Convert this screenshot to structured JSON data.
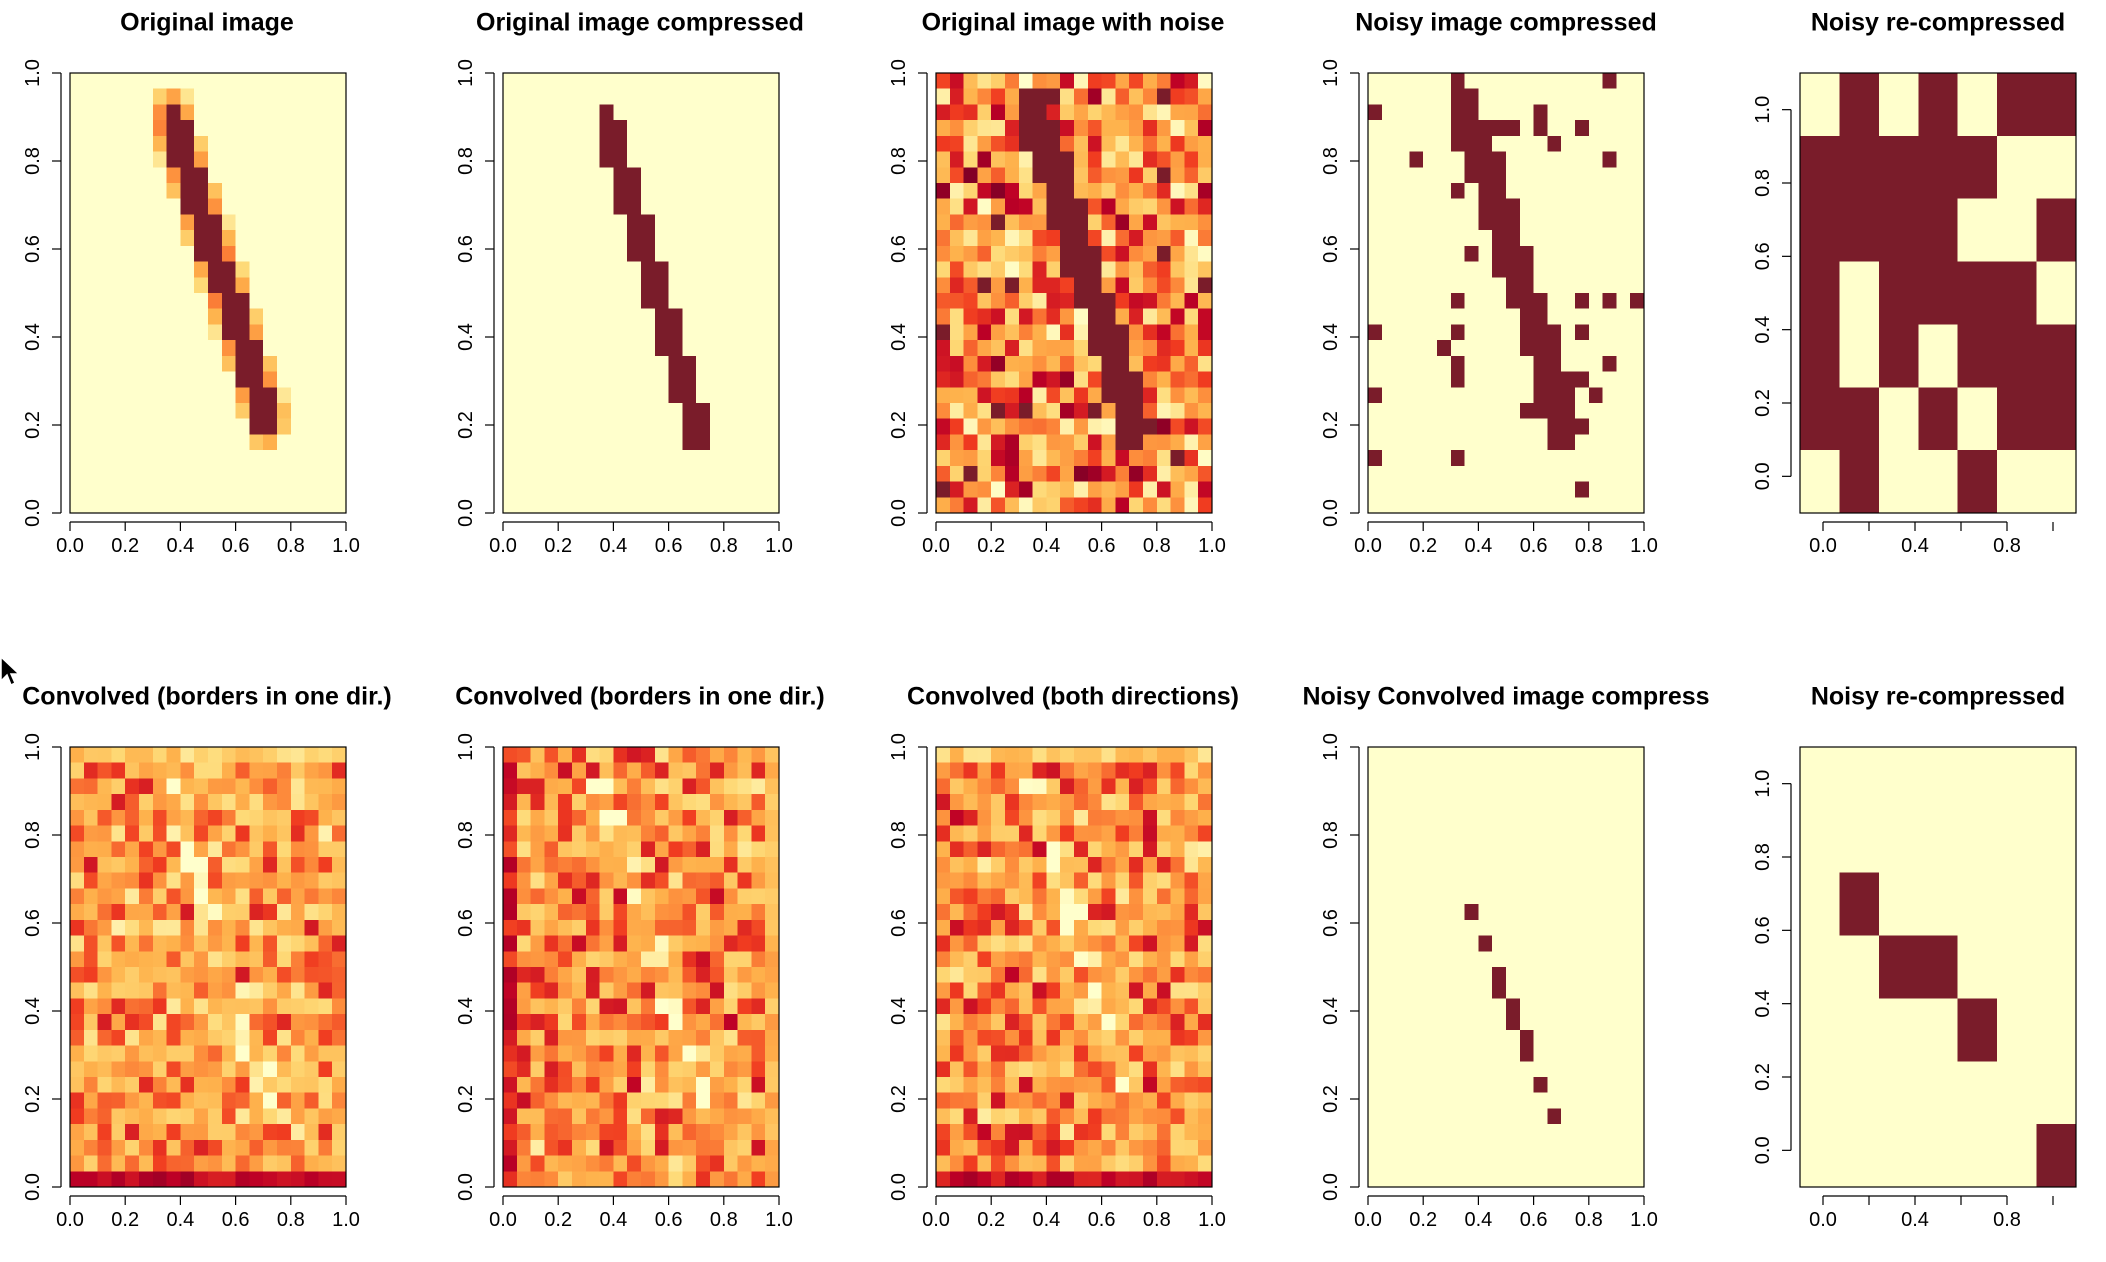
{
  "colors": {
    "ramp": [
      "#FFFFCC",
      "#FED976",
      "#FEB24C",
      "#FD8D3C",
      "#F03B20",
      "#BD0026",
      "#800026"
    ],
    "low": "#FFFFCC",
    "high": "#7A1C2A",
    "axis": "#000000",
    "background": "#FFFFFF"
  },
  "cursor_icon": "arrow-pointer-icon",
  "chart_data": [
    {
      "type": "heatmap",
      "title": "Original image",
      "xlim": [
        0,
        1
      ],
      "ylim": [
        0,
        1
      ],
      "xticks": [
        "0.0",
        "0.2",
        "0.4",
        "0.6",
        "0.8",
        "1.0"
      ],
      "yticks": [
        "0.0",
        "0.2",
        "0.4",
        "0.6",
        "0.8",
        "1.0"
      ],
      "grid": [
        20,
        28
      ],
      "pattern": "stroke",
      "stroke": {
        "from": [
          0.37,
          0.89
        ],
        "to": [
          0.71,
          0.22
        ],
        "width": 0.09,
        "soft_edge": true
      },
      "noise": 0,
      "binary": false
    },
    {
      "type": "heatmap",
      "title": "Original image compressed",
      "xlim": [
        0,
        1
      ],
      "ylim": [
        0,
        1
      ],
      "xticks": [
        "0.0",
        "0.2",
        "0.4",
        "0.6",
        "0.8",
        "1.0"
      ],
      "yticks": [
        "0.0",
        "0.2",
        "0.4",
        "0.6",
        "0.8",
        "1.0"
      ],
      "grid": [
        20,
        28
      ],
      "pattern": "stroke",
      "stroke": {
        "from": [
          0.38,
          0.88
        ],
        "to": [
          0.7,
          0.2
        ],
        "width": 0.1,
        "soft_edge": false
      },
      "noise": 0,
      "binary": true
    },
    {
      "type": "heatmap",
      "title": "Original image with noise",
      "xlim": [
        0,
        1
      ],
      "ylim": [
        0,
        1
      ],
      "xticks": [
        "0.0",
        "0.2",
        "0.4",
        "0.6",
        "0.8",
        "1.0"
      ],
      "yticks": [
        "0.0",
        "0.2",
        "0.4",
        "0.6",
        "0.8",
        "1.0"
      ],
      "grid": [
        20,
        28
      ],
      "pattern": "stroke",
      "stroke": {
        "from": [
          0.36,
          0.9
        ],
        "to": [
          0.72,
          0.2
        ],
        "width": 0.12,
        "soft_edge": false
      },
      "noise": 0.85,
      "binary": false
    },
    {
      "type": "heatmap",
      "title": "Noisy image compressed",
      "xlim": [
        0,
        1
      ],
      "ylim": [
        0,
        1
      ],
      "xticks": [
        "0.0",
        "0.2",
        "0.4",
        "0.6",
        "0.8",
        "1.0"
      ],
      "yticks": [
        "0.0",
        "0.2",
        "0.4",
        "0.6",
        "0.8",
        "1.0"
      ],
      "grid": [
        20,
        28
      ],
      "pattern": "stroke",
      "stroke": {
        "from": [
          0.36,
          0.9
        ],
        "to": [
          0.72,
          0.2
        ],
        "width": 0.12,
        "soft_edge": false
      },
      "noise": 0.75,
      "binary": true,
      "threshold": 0.8
    },
    {
      "type": "heatmap",
      "title": "Noisy re-compressed",
      "xlim": [
        -0.1,
        1.1
      ],
      "ylim": [
        -0.1,
        1.1
      ],
      "xticks": [
        "0.0",
        "0.4",
        "0.8"
      ],
      "yticks": [
        "0.0",
        "0.2",
        "0.4",
        "0.6",
        "0.8",
        "1.0"
      ],
      "grid": [
        7,
        7
      ],
      "pattern": "matrix",
      "binary": true,
      "cells": [
        [
          0,
          1,
          0,
          1,
          0,
          1,
          1
        ],
        [
          1,
          1,
          1,
          1,
          1,
          0,
          0
        ],
        [
          1,
          1,
          1,
          1,
          0,
          0,
          1
        ],
        [
          1,
          0,
          1,
          1,
          1,
          1,
          0
        ],
        [
          1,
          0,
          1,
          0,
          1,
          1,
          1
        ],
        [
          1,
          1,
          0,
          1,
          0,
          1,
          1
        ],
        [
          0,
          1,
          0,
          0,
          1,
          0,
          0
        ]
      ]
    },
    {
      "type": "heatmap",
      "title": "Convolved (borders in one dir.)",
      "xlim": [
        0,
        1
      ],
      "ylim": [
        0,
        1
      ],
      "xticks": [
        "0.0",
        "0.2",
        "0.4",
        "0.6",
        "0.8",
        "1.0"
      ],
      "yticks": [
        "0.0",
        "0.2",
        "0.4",
        "0.6",
        "0.8",
        "1.0"
      ],
      "grid": [
        20,
        28
      ],
      "pattern": "texture",
      "bias": 0.42,
      "spread": 0.3,
      "dark_edge": "bottom",
      "light_edge": "top",
      "binary": false
    },
    {
      "type": "heatmap",
      "title": "Convolved (borders in one dir.)",
      "xlim": [
        0,
        1
      ],
      "ylim": [
        0,
        1
      ],
      "xticks": [
        "0.0",
        "0.2",
        "0.4",
        "0.6",
        "0.8",
        "1.0"
      ],
      "yticks": [
        "0.0",
        "0.2",
        "0.4",
        "0.6",
        "0.8",
        "1.0"
      ],
      "grid": [
        20,
        28
      ],
      "pattern": "texture",
      "bias": 0.45,
      "spread": 0.32,
      "dark_edge": "left",
      "light_edge": "right",
      "binary": false
    },
    {
      "type": "heatmap",
      "title": "Convolved (both directions)",
      "xlim": [
        0,
        1
      ],
      "ylim": [
        0,
        1
      ],
      "xticks": [
        "0.0",
        "0.2",
        "0.4",
        "0.6",
        "0.8",
        "1.0"
      ],
      "yticks": [
        "0.0",
        "0.2",
        "0.4",
        "0.6",
        "0.8",
        "1.0"
      ],
      "grid": [
        20,
        28
      ],
      "pattern": "texture",
      "bias": 0.45,
      "spread": 0.32,
      "dark_edge": "bottom",
      "light_edge": "top",
      "binary": false
    },
    {
      "type": "heatmap",
      "title": "Noisy Convolved image compress",
      "xlim": [
        0,
        1
      ],
      "ylim": [
        0,
        1
      ],
      "xticks": [
        "0.0",
        "0.2",
        "0.4",
        "0.6",
        "0.8",
        "1.0"
      ],
      "yticks": [
        "0.0",
        "0.2",
        "0.4",
        "0.6",
        "0.8",
        "1.0"
      ],
      "grid": [
        20,
        28
      ],
      "pattern": "stroke",
      "stroke": {
        "from": [
          0.34,
          0.68
        ],
        "to": [
          0.7,
          0.12
        ],
        "width": 0.03,
        "soft_edge": false
      },
      "noise": 0.45,
      "binary": true,
      "threshold": 0.9
    },
    {
      "type": "heatmap",
      "title": "Noisy re-compressed",
      "xlim": [
        -0.1,
        1.1
      ],
      "ylim": [
        -0.1,
        1.1
      ],
      "xticks": [
        "0.0",
        "0.4",
        "0.8"
      ],
      "yticks": [
        "0.0",
        "0.2",
        "0.4",
        "0.6",
        "0.8",
        "1.0"
      ],
      "grid": [
        7,
        7
      ],
      "pattern": "matrix",
      "binary": true,
      "cells": [
        [
          0,
          0,
          0,
          0,
          0,
          0,
          0
        ],
        [
          0,
          0,
          0,
          0,
          0,
          0,
          0
        ],
        [
          0,
          1,
          0,
          0,
          0,
          0,
          0
        ],
        [
          0,
          0,
          1,
          1,
          0,
          0,
          0
        ],
        [
          0,
          0,
          0,
          0,
          1,
          0,
          0
        ],
        [
          0,
          0,
          0,
          0,
          0,
          0,
          0
        ],
        [
          0,
          0,
          0,
          0,
          0,
          0,
          1
        ]
      ]
    }
  ]
}
